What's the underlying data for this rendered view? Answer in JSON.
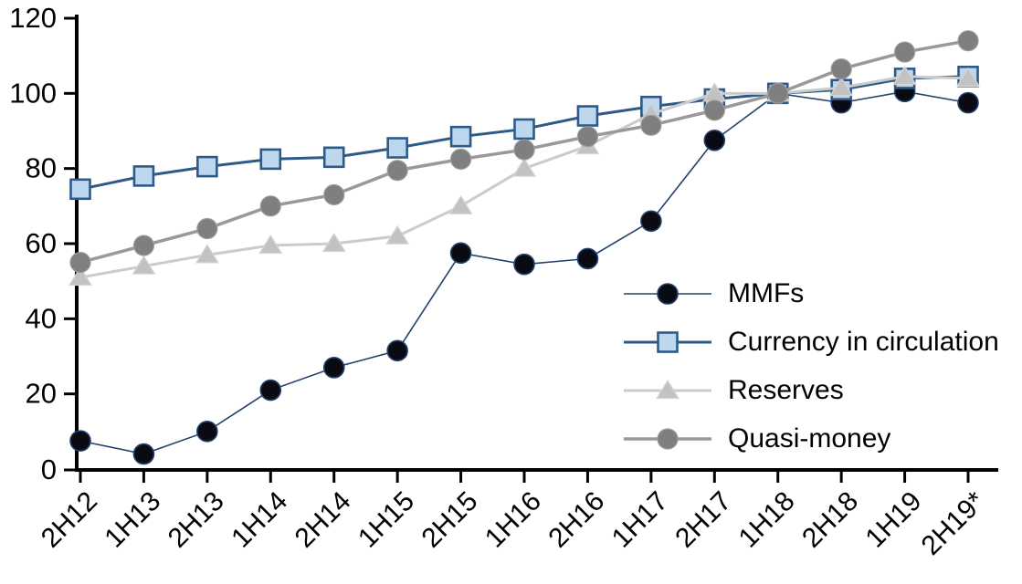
{
  "chart_data": {
    "type": "line",
    "title": "",
    "xlabel": "",
    "ylabel": "",
    "categories": [
      "2H12",
      "1H13",
      "2H13",
      "1H14",
      "2H14",
      "1H15",
      "2H15",
      "1H16",
      "2H16",
      "1H17",
      "2H17",
      "1H18",
      "2H18",
      "1H19",
      "2H19*"
    ],
    "series": [
      {
        "name": "MMFs",
        "marker": "circle",
        "marker_fill": "#0a0a12",
        "marker_stroke": "#24426e",
        "marker_stroke_width": 1.6,
        "line_color": "#24426e",
        "line_width": 1.6,
        "values": [
          7.5,
          4,
          10,
          21,
          27,
          31.5,
          57.5,
          54.5,
          56,
          66,
          87.5,
          100,
          97.5,
          100.5,
          97.5
        ]
      },
      {
        "name": "Currency in circulation",
        "marker": "square",
        "marker_fill": "#bdd7ee",
        "marker_stroke": "#2e5a88",
        "marker_stroke_width": 2.6,
        "line_color": "#2e5a88",
        "line_width": 3,
        "values": [
          74.5,
          78,
          80.5,
          82.5,
          83,
          85.5,
          88.5,
          90.5,
          94,
          96.5,
          98.5,
          100,
          101,
          104,
          104.5
        ]
      },
      {
        "name": "Reserves",
        "marker": "triangle",
        "marker_fill": "#c2c2c2",
        "marker_stroke": "#d6d6d6",
        "marker_stroke_width": 1.2,
        "line_color": "#cbcbcb",
        "line_width": 3,
        "values": [
          51,
          54,
          57,
          59.5,
          60,
          62,
          70,
          80,
          86,
          94.5,
          100,
          100,
          101.5,
          104.5,
          104
        ]
      },
      {
        "name": "Quasi-money",
        "marker": "circle",
        "marker_fill": "#7f7f7f",
        "marker_stroke": "#9d9d9d",
        "marker_stroke_width": 1.2,
        "line_color": "#999999",
        "line_width": 3.5,
        "values": [
          55,
          59.5,
          64,
          70,
          73,
          79.5,
          82.5,
          85,
          88.5,
          91.5,
          95.5,
          100,
          106.5,
          111,
          114
        ]
      }
    ],
    "ylim": [
      0,
      120
    ],
    "ytick_step": 20,
    "yticks": [
      "0",
      "20",
      "40",
      "60",
      "80",
      "100",
      "120"
    ],
    "grid": false,
    "legend_position": "center-right",
    "axis_color": "#000000",
    "tick_label_color": "#000000",
    "x_label_rotation": -45
  }
}
